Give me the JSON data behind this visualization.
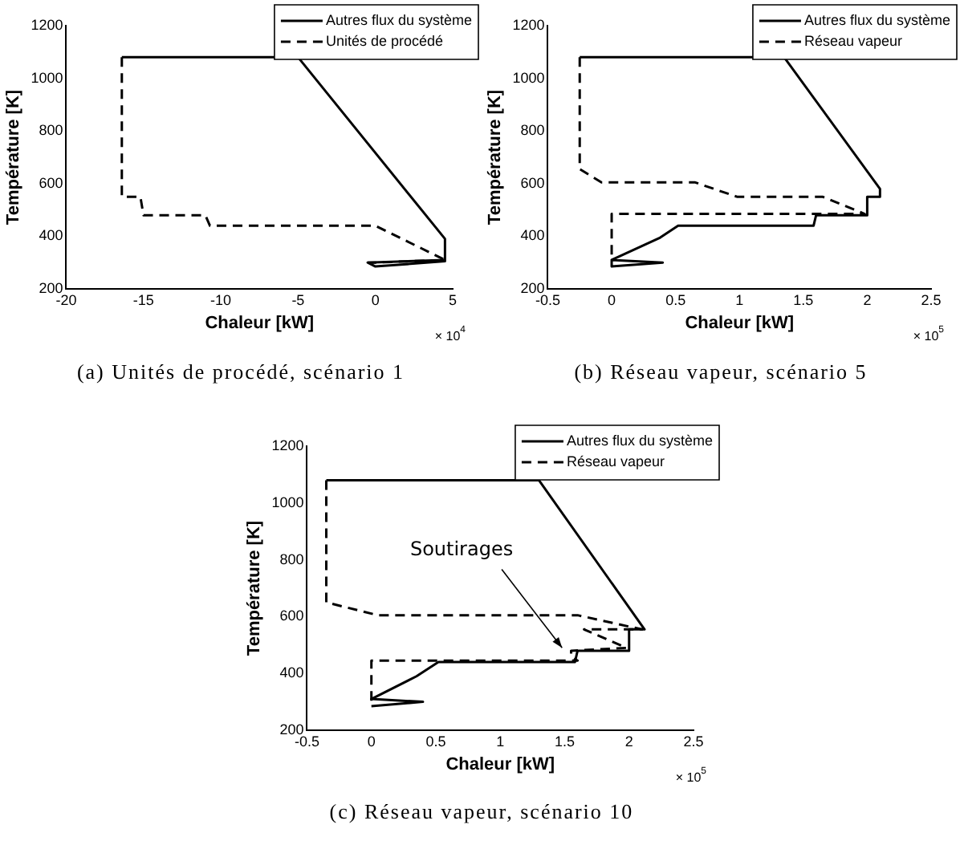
{
  "chart_data": [
    {
      "type": "line",
      "title": "(a) Unités de procédé, scénario 1",
      "xlabel": "Chaleur [kW]",
      "ylabel": "Température [K]",
      "xlim": [
        -20,
        5
      ],
      "xticks": [
        -20,
        -15,
        -10,
        -5,
        0,
        5
      ],
      "ylim": [
        200,
        1200
      ],
      "yticks": [
        200,
        400,
        600,
        800,
        1000,
        1200
      ],
      "grid": false,
      "legend": "top right",
      "annotations": [
        "× 10$^{4}$"
      ],
      "series": [
        {
          "name": "Autres flux du système",
          "color": "#000000",
          "line_style": "solid",
          "x": [
            -16.4,
            -5,
            4.5,
            4.5,
            0,
            -0.5,
            4.5
          ],
          "values": [
            1080,
            1080,
            390,
            305,
            285,
            300,
            310
          ]
        },
        {
          "name": "Unités de procédé",
          "color": "#000000",
          "line_style": "dashed",
          "x": [
            -16.4,
            -16.4,
            -15.2,
            -15,
            -11,
            -10.7,
            0,
            4.5,
            0,
            -0.5
          ],
          "values": [
            1080,
            550,
            550,
            480,
            480,
            440,
            440,
            310,
            300,
            300
          ]
        }
      ]
    },
    {
      "type": "line",
      "title": "(b) Réseau vapeur, scénario 5",
      "xlabel": "Chaleur [kW]",
      "ylabel": "Température [K]",
      "xlim": [
        -0.5,
        2.5
      ],
      "xticks": [
        -0.5,
        0,
        0.5,
        1,
        1.5,
        2,
        2.5
      ],
      "ylim": [
        200,
        1200
      ],
      "yticks": [
        200,
        400,
        600,
        800,
        1000,
        1200
      ],
      "grid": false,
      "legend": "top right",
      "annotations": [
        "× 10$^{5}$"
      ],
      "series": [
        {
          "name": "Autres flux du système",
          "color": "#000000",
          "line_style": "solid",
          "x": [
            -0.25,
            1.35,
            2.1,
            2.1,
            2,
            2,
            1.6,
            1.58,
            0.52,
            0.38,
            0,
            0.4,
            0,
            0
          ],
          "values": [
            1080,
            1080,
            580,
            550,
            550,
            480,
            480,
            440,
            440,
            395,
            310,
            300,
            285,
            310
          ]
        },
        {
          "name": "Réseau vapeur",
          "color": "#000000",
          "line_style": "dashed",
          "x": [
            -0.25,
            -0.25,
            -0.08,
            0.65,
            0.98,
            1.65,
            1.98,
            0,
            0,
            0
          ],
          "values": [
            1080,
            655,
            605,
            605,
            550,
            550,
            485,
            485,
            440,
            310
          ]
        }
      ]
    },
    {
      "type": "line",
      "title": "(c) Réseau vapeur, scénario 10",
      "xlabel": "Chaleur [kW]",
      "ylabel": "Température [K]",
      "xlim": [
        -0.5,
        2.5
      ],
      "xticks": [
        -0.5,
        0,
        0.5,
        1,
        1.5,
        2,
        2.5
      ],
      "ylim": [
        200,
        1200
      ],
      "yticks": [
        200,
        400,
        600,
        800,
        1000,
        1200
      ],
      "grid": false,
      "legend": "top right",
      "annotations": [
        "× 10$^{5}$",
        "Soutirages"
      ],
      "series": [
        {
          "name": "Autres flux du système",
          "color": "#000000",
          "line_style": "solid",
          "x": [
            -0.35,
            1.3,
            2.12,
            2,
            2,
            1.6,
            1.58,
            0.52,
            0.35,
            0,
            0.4,
            0
          ],
          "values": [
            1080,
            1080,
            555,
            555,
            480,
            480,
            440,
            440,
            390,
            310,
            300,
            285
          ]
        },
        {
          "name": "Réseau vapeur",
          "color": "#000000",
          "line_style": "dashed",
          "x": [
            -0.35,
            -0.35,
            0.05,
            1.6,
            2.1,
            1.65,
            1.98,
            1.55,
            1.55,
            1.6,
            0,
            0,
            0
          ],
          "values": [
            1080,
            650,
            605,
            605,
            555,
            555,
            490,
            480,
            460,
            445,
            445,
            310,
            290
          ]
        }
      ]
    }
  ]
}
